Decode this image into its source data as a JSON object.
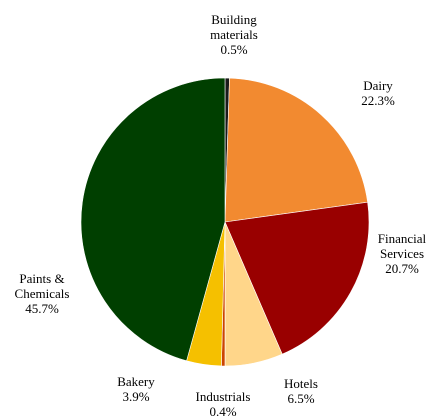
{
  "chart_data": {
    "type": "pie",
    "title": "",
    "start_angle_deg": 0,
    "direction": "clockwise",
    "slices": [
      {
        "lines": [
          "Building",
          "materials"
        ],
        "pct_label": "0.5%",
        "value": 0.5,
        "color": "#1a1a1a"
      },
      {
        "lines": [
          "Dairy"
        ],
        "pct_label": "22.3%",
        "value": 22.3,
        "color": "#f28a30"
      },
      {
        "lines": [
          "Financial",
          "Services"
        ],
        "pct_label": "20.7%",
        "value": 20.7,
        "color": "#990000"
      },
      {
        "lines": [
          "Hotels"
        ],
        "pct_label": "6.5%",
        "value": 6.5,
        "color": "#ffd68a"
      },
      {
        "lines": [
          "Industrials"
        ],
        "pct_label": "0.4%",
        "value": 0.4,
        "color": "#cc4400"
      },
      {
        "lines": [
          "Bakery"
        ],
        "pct_label": "3.9%",
        "value": 3.9,
        "color": "#f5c000"
      },
      {
        "lines": [
          "Paints &",
          "Chemicals"
        ],
        "pct_label": "45.7%",
        "value": 45.7,
        "color": "#003f00"
      }
    ]
  }
}
